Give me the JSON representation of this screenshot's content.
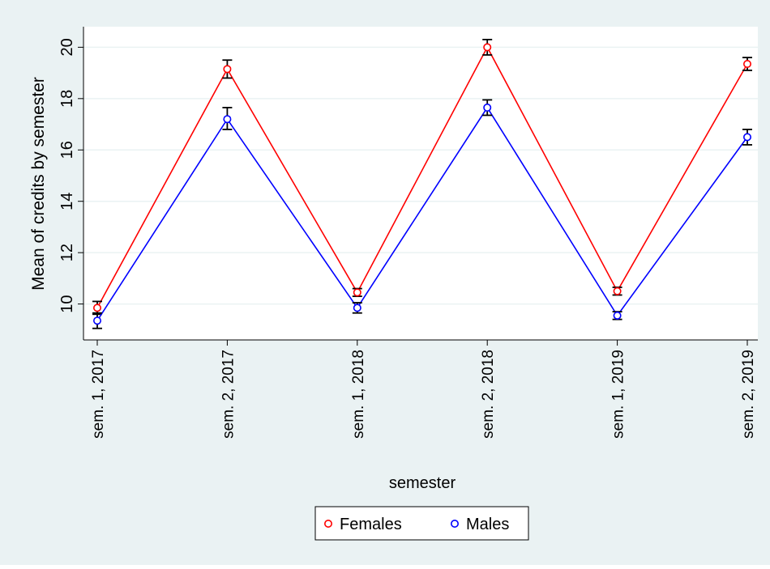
{
  "chart_data": {
    "type": "line",
    "title": "",
    "xlabel": "semester",
    "ylabel": "Mean of credits by semester",
    "categories": [
      "sem. 1, 2017",
      "sem. 2, 2017",
      "sem. 1, 2018",
      "sem. 2, 2018",
      "sem. 1, 2019",
      "sem. 2, 2019"
    ],
    "ylim": [
      8.6,
      20.8
    ],
    "yticks": [
      10,
      12,
      14,
      16,
      18,
      20
    ],
    "grid": true,
    "legend_position": "bottom",
    "series": [
      {
        "name": "Females",
        "color": "#ff0000",
        "values": [
          9.85,
          19.15,
          10.45,
          20.0,
          10.5,
          19.35
        ],
        "ci_low": [
          9.6,
          18.8,
          10.3,
          19.7,
          10.35,
          19.1
        ],
        "ci_high": [
          10.1,
          19.5,
          10.6,
          20.3,
          10.65,
          19.6
        ]
      },
      {
        "name": "Males",
        "color": "#0000ff",
        "values": [
          9.35,
          17.2,
          9.85,
          17.65,
          9.55,
          16.5
        ],
        "ci_low": [
          9.05,
          16.8,
          9.65,
          17.35,
          9.4,
          16.2
        ],
        "ci_high": [
          9.65,
          17.65,
          10.05,
          17.95,
          9.7,
          16.8
        ]
      }
    ]
  }
}
